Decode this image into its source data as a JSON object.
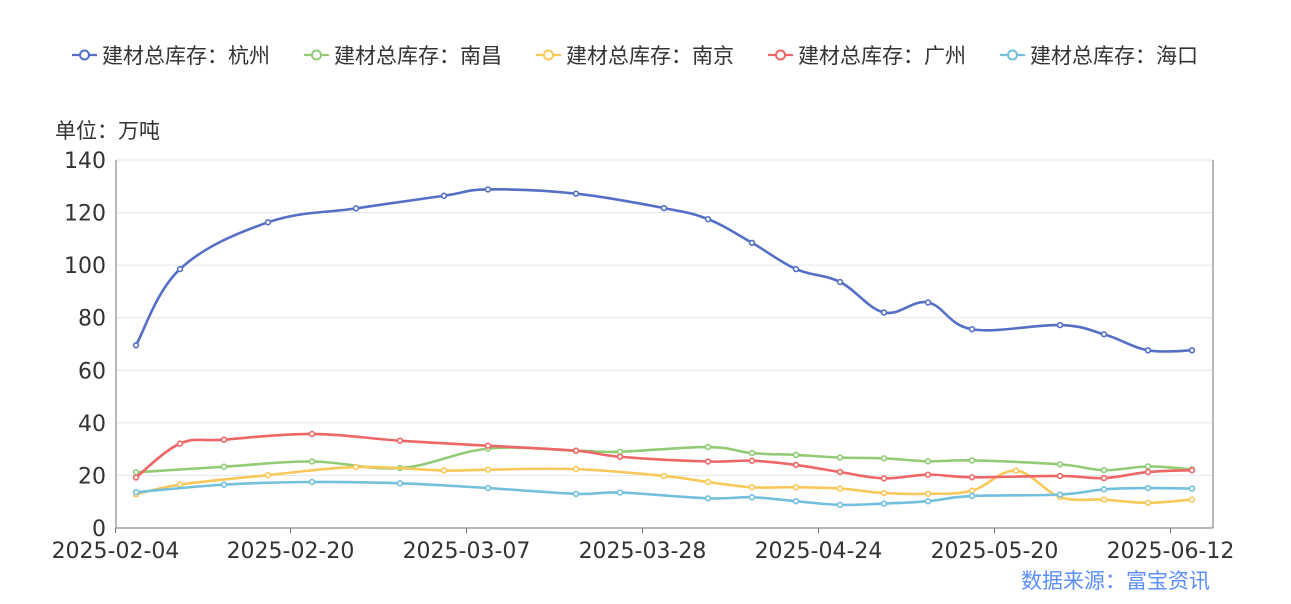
{
  "chart_data": {
    "type": "line",
    "unit_label": "单位：万吨",
    "source": "数据来源：富宝资讯",
    "x_tick_labels": [
      "2025-02-04",
      "2025-02-20",
      "2025-03-07",
      "2025-03-28",
      "2025-04-24",
      "2025-05-20",
      "2025-06-12"
    ],
    "y_tick_labels": [
      "0",
      "20",
      "40",
      "60",
      "80",
      "100",
      "120",
      "140"
    ],
    "ylim": [
      0,
      140
    ],
    "grid": true,
    "legend_position": "top",
    "series": [
      {
        "name": "建材总库存：杭州",
        "color": "#5470c6",
        "values": [
          69.5,
          98.5,
          116.3,
          121.6,
          126.4,
          128.8,
          127.2,
          121.7,
          117.5,
          108.5,
          98.5,
          93.6,
          82.0,
          85.8,
          75.6,
          77.2,
          73.7,
          67.6,
          67.6
        ]
      },
      {
        "name": "建材总库存：南昌",
        "color": "#91cc75",
        "values": [
          21.2,
          null,
          23.3,
          25.3,
          22.8,
          30.2,
          29.4,
          29.0,
          30.8,
          28.5,
          27.8,
          26.8,
          26.5,
          25.4,
          25.7,
          24.2,
          22.0,
          23.4,
          22.3
        ]
      },
      {
        "name": "建材总库存：南京",
        "color": "#fac858",
        "values": [
          12.8,
          16.5,
          20.1,
          23.2,
          21.9,
          22.2,
          22.4,
          19.8,
          17.5,
          15.5,
          15.5,
          15.0,
          13.3,
          13.0,
          14.2,
          21.8,
          11.8,
          10.8,
          9.6,
          10.8
        ]
      },
      {
        "name": "建材总库存：广州",
        "color": "#ee6666",
        "values": [
          19.2,
          32.1,
          33.6,
          35.8,
          33.2,
          31.3,
          29.4,
          27.1,
          25.3,
          25.6,
          24.0,
          21.3,
          18.9,
          20.3,
          19.3,
          19.8,
          19.0,
          21.3,
          22.0
        ]
      },
      {
        "name": "建材总库存：海口",
        "color": "#73c0de",
        "values": [
          13.6,
          null,
          16.5,
          17.5,
          17.0,
          15.2,
          13.0,
          13.5,
          11.3,
          11.7,
          10.2,
          8.8,
          9.3,
          10.2,
          12.2,
          12.7,
          14.7,
          15.2,
          15.0
        ]
      }
    ],
    "x_positions_days": [
      0,
      7,
      16,
      24,
      34,
      40,
      50,
      60,
      65,
      70,
      75,
      80,
      85,
      91,
      95,
      105,
      110,
      115,
      120,
      121
    ]
  }
}
